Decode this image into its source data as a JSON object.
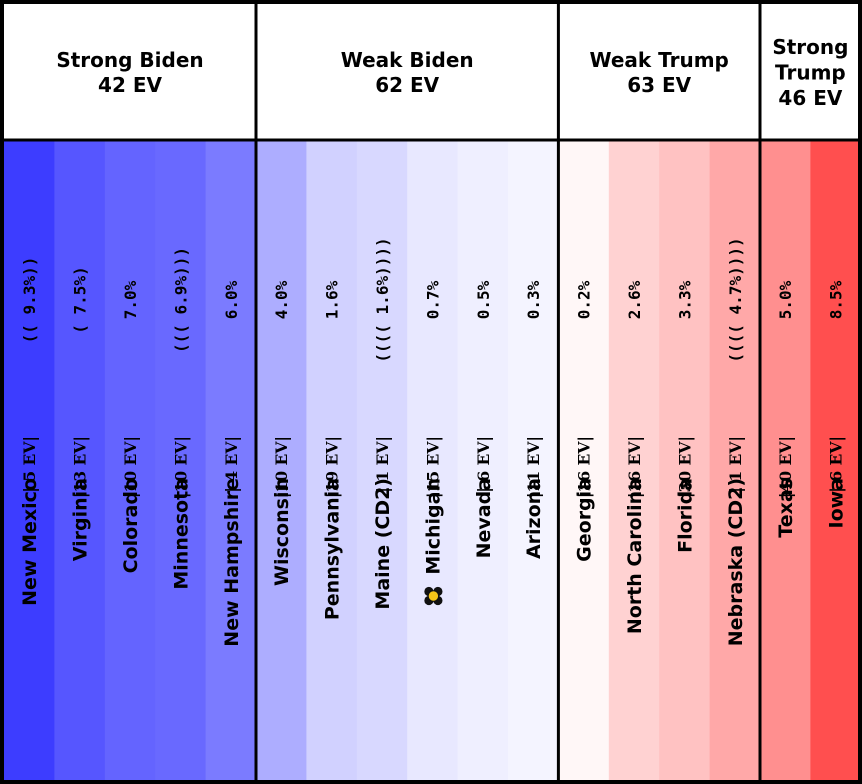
{
  "chart_data": {
    "type": "table",
    "groups": [
      {
        "title": "Strong Biden",
        "ev_label": "42 EV",
        "states": [
          {
            "state": "New Mexico",
            "ev_label": "|  5  EV|",
            "margin_label": "(( 9.3%))",
            "color": "#3d3dff"
          },
          {
            "state": "Virginia",
            "ev_label": "|13  EV|",
            "margin_label": "( 7.5%)",
            "color": "#5656ff"
          },
          {
            "state": "Colorado",
            "ev_label": "|10  EV|",
            "margin_label": "7.0%",
            "color": "#6464ff"
          },
          {
            "state": "Minnesota",
            "ev_label": "|10  EV|",
            "margin_label": "((( 6.9%)))",
            "color": "#6969ff"
          },
          {
            "state": "New Hampshire",
            "ev_label": "|  4  EV|",
            "margin_label": "6.0%",
            "color": "#7b7bff"
          }
        ]
      },
      {
        "title": "Weak Biden",
        "ev_label": "62 EV",
        "states": [
          {
            "state": "Wisconsin",
            "ev_label": "|10  EV|",
            "margin_label": "4.0%",
            "color": "#adadff"
          },
          {
            "state": "Pennsylvania",
            "ev_label": "|19  EV|",
            "margin_label": "1.6%",
            "color": "#d1d1ff"
          },
          {
            "state": "Maine (CD2)",
            "ev_label": "|  1  EV|",
            "margin_label": "(((( 1.6%))))",
            "color": "#d8d8ff"
          },
          {
            "state": "Michigan",
            "ev_label": "|15  EV|",
            "margin_label": "0.7%",
            "color": "#e8e8ff",
            "icon": "flower-icon"
          },
          {
            "state": "Nevada",
            "ev_label": "|  6  EV|",
            "margin_label": "0.5%",
            "color": "#efefff"
          },
          {
            "state": "Arizona",
            "ev_label": "|11  EV|",
            "margin_label": "0.3%",
            "color": "#f4f4ff"
          }
        ]
      },
      {
        "title": "Weak Trump",
        "ev_label": "63 EV",
        "states": [
          {
            "state": "Georgia",
            "ev_label": "|16  EV|",
            "margin_label": "0.2%",
            "color": "#fff7f7"
          },
          {
            "state": "North Carolina",
            "ev_label": "|16  EV|",
            "margin_label": "2.6%",
            "color": "#ffd2d2"
          },
          {
            "state": "Florida",
            "ev_label": "|30  EV|",
            "margin_label": "3.3%",
            "color": "#ffc2c2"
          },
          {
            "state": "Nebraska (CD2)",
            "ev_label": "|  1  EV|",
            "margin_label": "(((( 4.7%))))",
            "color": "#ffa8a8"
          }
        ]
      },
      {
        "title": "Strong Trump",
        "ev_label": "46 EV",
        "states": [
          {
            "state": "Texas",
            "ev_label": "|40  EV|",
            "margin_label": "5.0%",
            "color": "#ff8f8f"
          },
          {
            "state": "Iowa",
            "ev_label": "|  6  EV|",
            "margin_label": "8.5%",
            "color": "#ff4f4f"
          }
        ]
      }
    ]
  }
}
